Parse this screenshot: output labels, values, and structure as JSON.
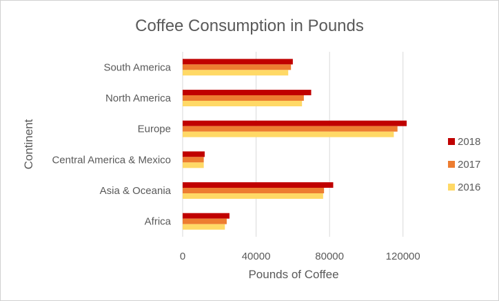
{
  "chart_data": {
    "type": "bar",
    "orientation": "horizontal",
    "title": "Coffee Consumption in Pounds",
    "xlabel": "Pounds of Coffee",
    "ylabel": "Continent",
    "xlim": [
      0,
      140000
    ],
    "xticks": [
      0,
      40000,
      80000,
      120000
    ],
    "xtick_labels": [
      "0",
      "40000",
      "80000",
      "120000"
    ],
    "grid": true,
    "legend_position": "right",
    "categories": [
      "South America",
      "North America",
      "Europe",
      "Central America & Mexico",
      "Asia & Oceania",
      "Africa"
    ],
    "series": [
      {
        "name": "2018",
        "color": "#C00000",
        "values": [
          60000,
          70000,
          122000,
          12000,
          82000,
          25500
        ]
      },
      {
        "name": "2017",
        "color": "#ED7D31",
        "values": [
          59000,
          66000,
          117000,
          11500,
          77000,
          24000
        ]
      },
      {
        "name": "2016",
        "color": "#FFD966",
        "values": [
          57500,
          65000,
          115000,
          11500,
          76500,
          23000
        ]
      }
    ]
  }
}
